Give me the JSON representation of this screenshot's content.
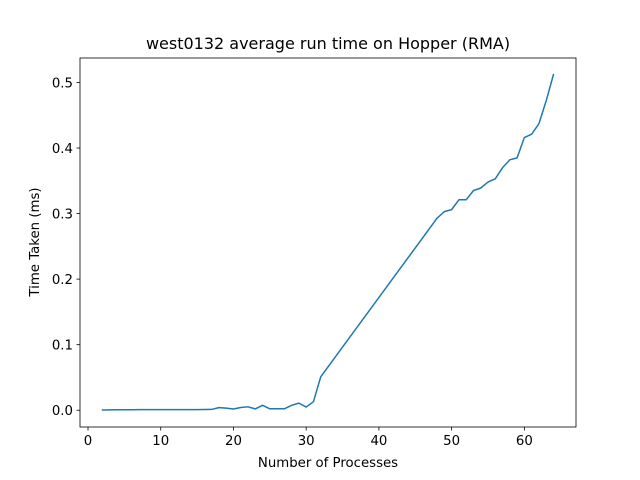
{
  "chart_data": {
    "type": "line",
    "title": "west0132 average run time on Hopper (RMA)",
    "xlabel": "Number of Processes",
    "ylabel": "Time Taken (ms)",
    "xlim": [
      -1.1,
      67.1
    ],
    "ylim": [
      -0.0256,
      0.5373
    ],
    "xticks": [
      0,
      10,
      20,
      30,
      40,
      50,
      60
    ],
    "xtick_labels": [
      "0",
      "10",
      "20",
      "30",
      "40",
      "50",
      "60"
    ],
    "yticks": [
      0.0,
      0.1,
      0.2,
      0.3,
      0.4,
      0.5
    ],
    "ytick_labels": [
      "0.0",
      "0.1",
      "0.2",
      "0.3",
      "0.4",
      "0.5"
    ],
    "grid": false,
    "series": [
      {
        "color": "#1f77b4",
        "x": [
          2,
          3,
          4,
          5,
          6,
          7,
          8,
          9,
          10,
          11,
          12,
          13,
          14,
          15,
          16,
          17,
          18,
          19,
          20,
          21,
          22,
          23,
          24,
          25,
          26,
          27,
          28,
          29,
          30,
          31,
          32,
          48,
          49,
          50,
          51,
          52,
          53,
          54,
          55,
          56,
          57,
          58,
          59,
          60,
          61,
          62,
          63,
          64
        ],
        "y": [
          0.0004,
          0.0006,
          0.0008,
          0.0008,
          0.0008,
          0.0009,
          0.0009,
          0.0009,
          0.0009,
          0.0009,
          0.0009,
          0.0009,
          0.0009,
          0.0009,
          0.001,
          0.0012,
          0.004,
          0.0032,
          0.0018,
          0.0042,
          0.0052,
          0.002,
          0.0075,
          0.0022,
          0.0022,
          0.0022,
          0.0075,
          0.0108,
          0.0048,
          0.013,
          0.051,
          0.293,
          0.303,
          0.306,
          0.321,
          0.321,
          0.335,
          0.339,
          0.348,
          0.353,
          0.37,
          0.382,
          0.385,
          0.416,
          0.421,
          0.437,
          0.472,
          0.512
        ]
      }
    ]
  }
}
